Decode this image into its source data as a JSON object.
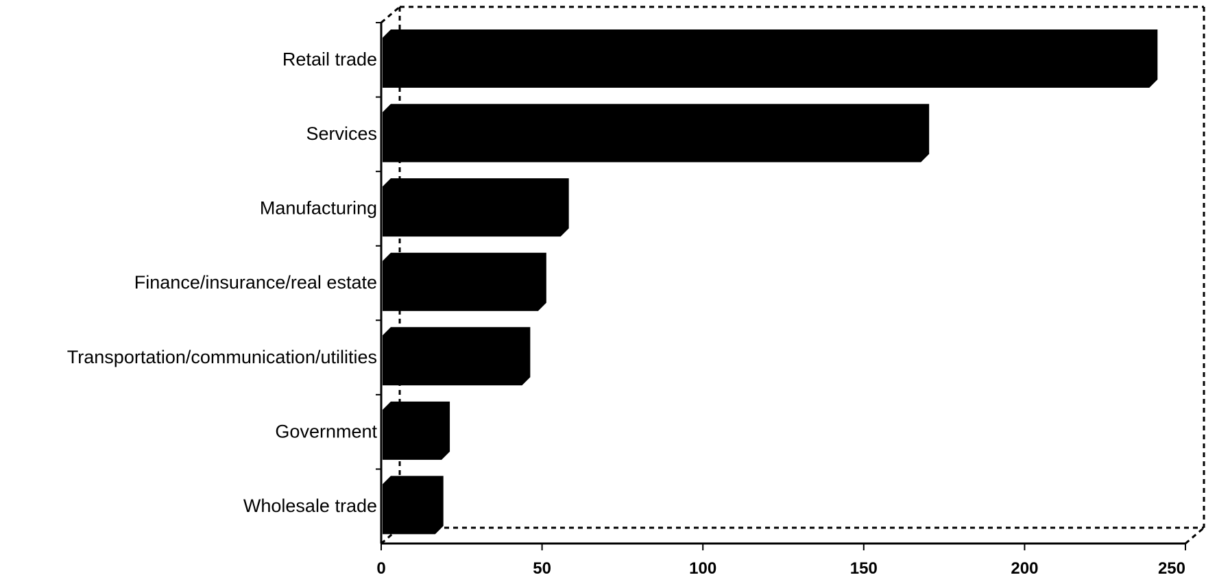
{
  "chart_data": {
    "type": "bar",
    "orientation": "horizontal",
    "style": "3d",
    "categories": [
      "Retail trade",
      "Services",
      "Manufacturing",
      "Finance/insurance/real estate",
      "Transportation/communication/utilities",
      "Government",
      "Wholesale trade"
    ],
    "values": [
      236,
      165,
      53,
      46,
      41,
      16,
      14
    ],
    "title": "",
    "xlabel": "",
    "ylabel": "",
    "xlim": [
      0,
      250
    ],
    "xticks": [
      "0",
      "50",
      "100",
      "150",
      "200",
      "250"
    ],
    "grid": false,
    "legend": "none",
    "bar_color": "#000000"
  }
}
